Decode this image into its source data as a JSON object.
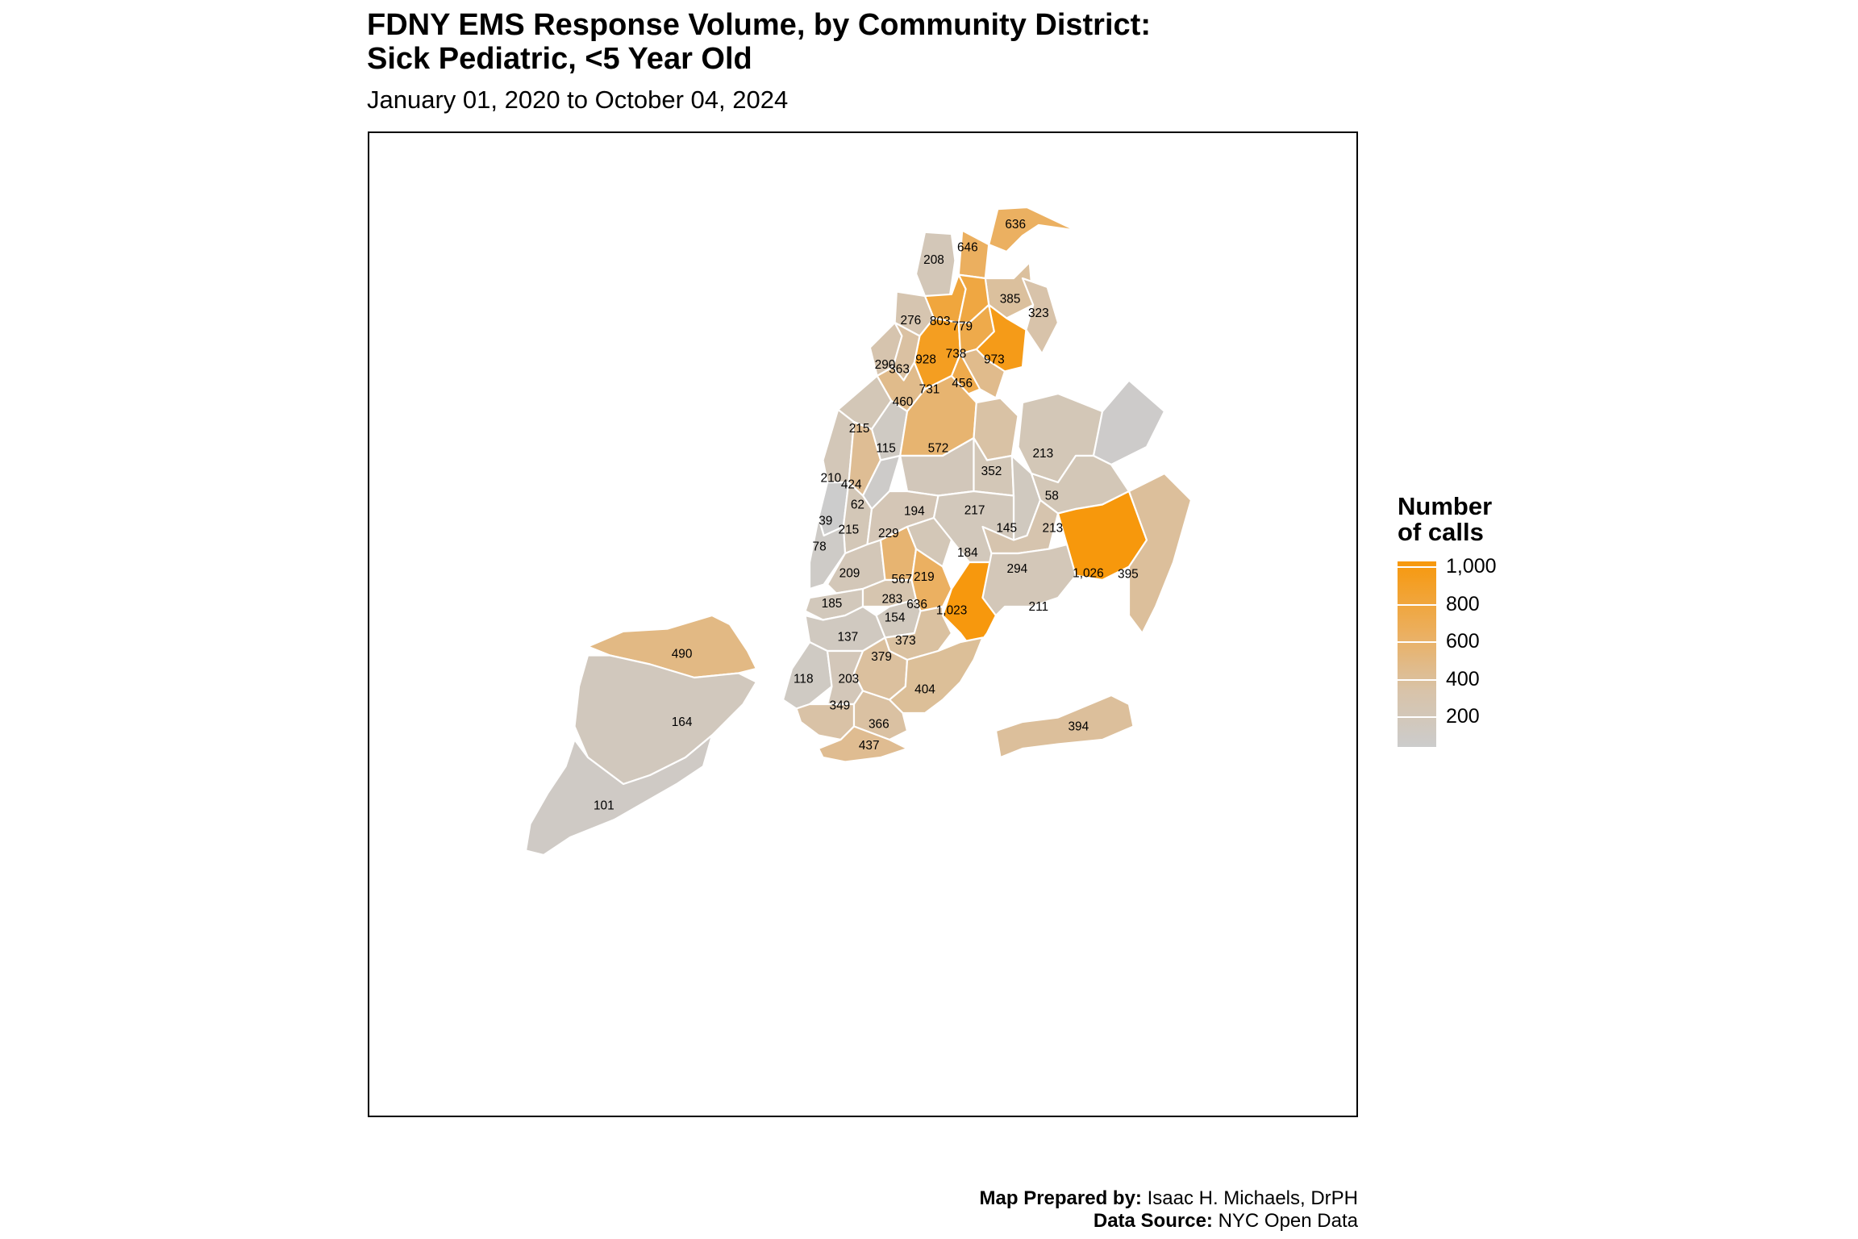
{
  "title": "FDNY EMS Response Volume, by Community District:\nSick Pediatric, <5 Year Old",
  "subtitle": "January 01, 2020 to October 04, 2024",
  "legend": {
    "title": "Number\nof calls",
    "ticks": [
      "1,000",
      "800",
      "600",
      "400",
      "200"
    ],
    "tick_values": [
      1000,
      800,
      600,
      400,
      200
    ],
    "min": 39,
    "max": 1026,
    "low_color": "#cccccc",
    "high_color": "#f7980c"
  },
  "caption": {
    "prepared_label": "Map Prepared by:",
    "prepared_value": "Isaac H. Michaels, DrPH",
    "source_label": "Data Source:",
    "source_value": "NYC Open Data"
  },
  "districts": [
    {
      "label": "208",
      "value": 208
    },
    {
      "label": "636",
      "value": 636
    },
    {
      "label": "646",
      "value": 646
    },
    {
      "label": "385",
      "value": 385
    },
    {
      "label": "276",
      "value": 276
    },
    {
      "label": "803",
      "value": 803
    },
    {
      "label": "779",
      "value": 779
    },
    {
      "label": "928",
      "value": 928
    },
    {
      "label": "738",
      "value": 738
    },
    {
      "label": "973",
      "value": 973
    },
    {
      "label": "323",
      "value": 323
    },
    {
      "label": "290",
      "value": 290
    },
    {
      "label": "363",
      "value": 363
    },
    {
      "label": "731",
      "value": 731
    },
    {
      "label": "456",
      "value": 456
    },
    {
      "label": "460",
      "value": 460
    },
    {
      "label": "215",
      "value": 215
    },
    {
      "label": "115",
      "value": 115
    },
    {
      "label": "572",
      "value": 572
    },
    {
      "label": "213",
      "value": 213
    },
    {
      "label": "210",
      "value": 210
    },
    {
      "label": "424",
      "value": 424
    },
    {
      "label": "62",
      "value": 62
    },
    {
      "label": "352",
      "value": 352
    },
    {
      "label": "58",
      "value": 58
    },
    {
      "label": "39",
      "value": 39
    },
    {
      "label": "194",
      "value": 194
    },
    {
      "label": "217",
      "value": 217
    },
    {
      "label": "215",
      "value": 215
    },
    {
      "label": "145",
      "value": 145
    },
    {
      "label": "213",
      "value": 213
    },
    {
      "label": "78",
      "value": 78
    },
    {
      "label": "229",
      "value": 229
    },
    {
      "label": "184",
      "value": 184
    },
    {
      "label": "209",
      "value": 209
    },
    {
      "label": "567",
      "value": 567
    },
    {
      "label": "219",
      "value": 219
    },
    {
      "label": "294",
      "value": 294
    },
    {
      "label": "1,026",
      "value": 1026
    },
    {
      "label": "395",
      "value": 395
    },
    {
      "label": "185",
      "value": 185
    },
    {
      "label": "283",
      "value": 283
    },
    {
      "label": "636",
      "value": 636
    },
    {
      "label": "1,023",
      "value": 1023
    },
    {
      "label": "211",
      "value": 211
    },
    {
      "label": "154",
      "value": 154
    },
    {
      "label": "137",
      "value": 137
    },
    {
      "label": "373",
      "value": 373
    },
    {
      "label": "490",
      "value": 490
    },
    {
      "label": "379",
      "value": 379
    },
    {
      "label": "118",
      "value": 118
    },
    {
      "label": "203",
      "value": 203
    },
    {
      "label": "404",
      "value": 404
    },
    {
      "label": "164",
      "value": 164
    },
    {
      "label": "349",
      "value": 349
    },
    {
      "label": "366",
      "value": 366
    },
    {
      "label": "394",
      "value": 394
    },
    {
      "label": "437",
      "value": 437
    },
    {
      "label": "101",
      "value": 101
    }
  ]
}
